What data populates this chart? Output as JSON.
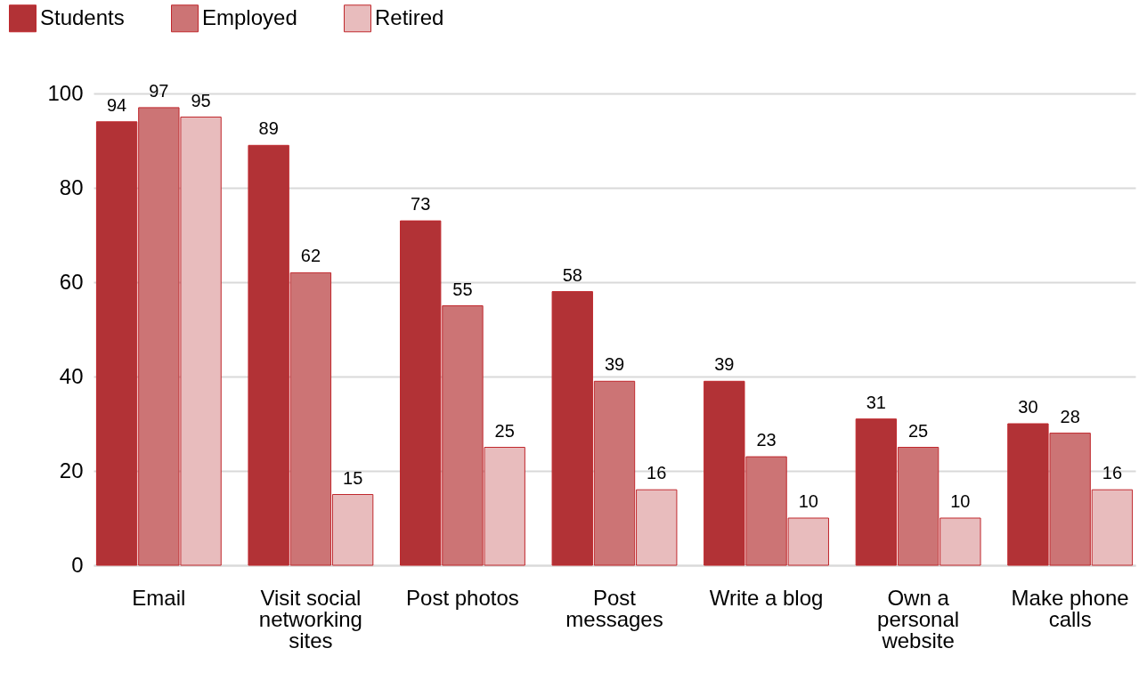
{
  "chart_data": {
    "type": "bar",
    "categories": [
      "Email",
      "Visit social networking sites",
      "Post photos",
      "Post messages",
      "Write a blog",
      "Own a personal website",
      "Make phone calls"
    ],
    "series": [
      {
        "name": "Students",
        "color": "#b23236",
        "values": [
          94,
          89,
          73,
          58,
          39,
          31,
          30
        ]
      },
      {
        "name": "Employed",
        "color": "#cc7475",
        "values": [
          97,
          62,
          55,
          39,
          23,
          25,
          28
        ]
      },
      {
        "name": "Retired",
        "color": "#e8bcbd",
        "values": [
          95,
          15,
          25,
          16,
          10,
          10,
          16
        ]
      }
    ],
    "ylim": [
      0,
      100
    ],
    "yticks": [
      0,
      20,
      40,
      60,
      80,
      100
    ],
    "grid": "y",
    "legend": "top left",
    "data_labels": true
  }
}
